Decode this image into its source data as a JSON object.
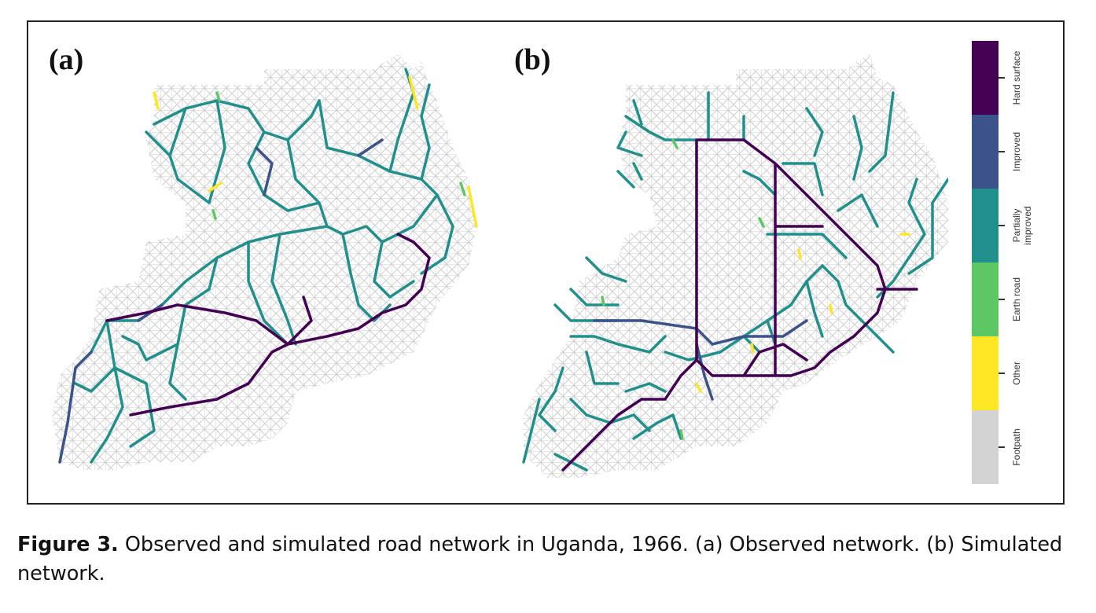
{
  "panels": [
    {
      "label": "(a)"
    },
    {
      "label": "(b)"
    }
  ],
  "legend": {
    "categories": [
      "Hard surface",
      "Improved",
      "Partially improved",
      "Earth road",
      "Other",
      "Footpath"
    ],
    "colors": {
      "Hard surface": "#440154",
      "Improved": "#3b528b",
      "Partially improved": "#21908d",
      "Earth road": "#5dc863",
      "Other": "#fde725",
      "Footpath": "#d3d3d3"
    }
  },
  "caption": {
    "prefix": "Figure 3.",
    "text": " Observed and simulated road network in Uganda, 1966. (a) Observed network. (b) Simulated network."
  }
}
